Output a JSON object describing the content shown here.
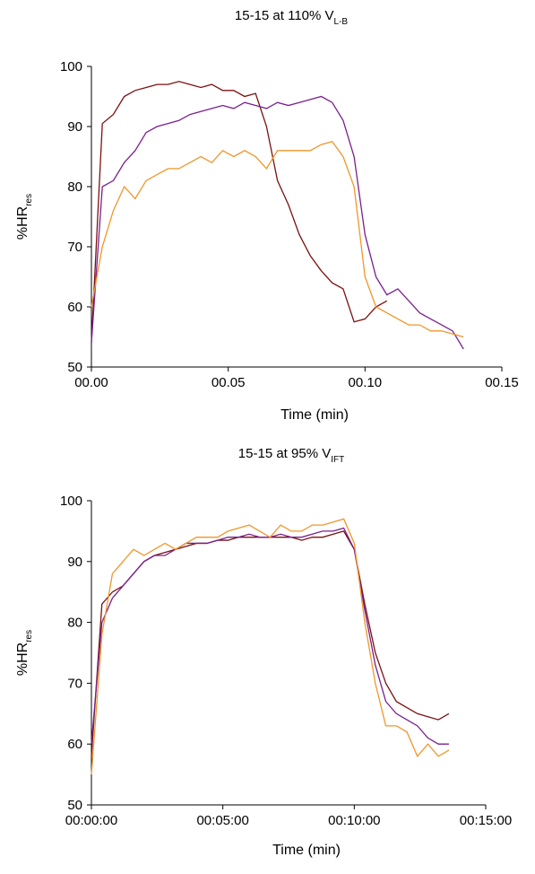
{
  "chart_data": [
    {
      "type": "line",
      "title": "15-15 at 110% V",
      "title_sub": "L-B",
      "ylabel": "%HR",
      "ylabel_sub": "res",
      "xlabel": "Time (min)",
      "x": [
        0,
        0.004,
        0.008,
        0.012,
        0.016,
        0.02,
        0.024,
        0.028,
        0.032,
        0.036,
        0.04,
        0.044,
        0.048,
        0.052,
        0.056,
        0.06,
        0.064,
        0.068,
        0.072,
        0.076,
        0.08,
        0.084,
        0.088,
        0.092,
        0.096,
        0.1,
        0.104,
        0.108,
        0.112,
        0.116,
        0.12,
        0.124,
        0.128,
        0.132,
        0.136
      ],
      "series": [
        {
          "color": "#7b1010",
          "values": [
            54,
            90.5,
            92,
            95,
            96,
            96.5,
            97,
            97,
            97.5,
            97,
            96.5,
            97,
            96,
            96,
            95,
            95.5,
            90,
            81,
            77,
            72,
            68.5,
            66,
            64,
            63,
            57.5,
            58,
            60,
            61,
            null,
            null,
            null,
            null,
            null,
            null,
            null
          ]
        },
        {
          "color": "#7a1f8f",
          "values": [
            54,
            80,
            81,
            84,
            86,
            89,
            90,
            90.5,
            91,
            92,
            92.5,
            93,
            93.5,
            93,
            94,
            93.5,
            93,
            94,
            93.5,
            94,
            94.5,
            95,
            94,
            91,
            85,
            72,
            65,
            62,
            63,
            61,
            59,
            58,
            57,
            56,
            53
          ]
        },
        {
          "color": "#f0962a",
          "values": [
            60,
            70,
            76,
            80,
            78,
            81,
            82,
            83,
            83,
            84,
            85,
            84,
            86,
            85,
            86,
            85,
            83,
            86,
            86,
            86,
            86,
            87,
            87.5,
            85,
            80,
            65,
            60,
            59,
            58,
            57,
            57,
            56,
            56,
            55.5,
            55
          ]
        }
      ],
      "xlim": [
        0,
        0.15
      ],
      "xticks": [
        {
          "value": 0,
          "label": "00.00"
        },
        {
          "value": 0.05,
          "label": "00.05"
        },
        {
          "value": 0.1,
          "label": "00.10"
        },
        {
          "value": 0.15,
          "label": "00.15"
        }
      ],
      "ylim": [
        50,
        100
      ],
      "yticks": [
        50,
        60,
        70,
        80,
        90,
        100
      ],
      "grid": false
    },
    {
      "type": "line",
      "title": "15-15 at 95% V",
      "title_sub": "IFT",
      "ylabel": "%HR",
      "ylabel_sub": "res",
      "xlabel": "Time (min)",
      "x": [
        0,
        0.4,
        0.8,
        1.2,
        1.6,
        2,
        2.4,
        2.8,
        3.2,
        3.6,
        4,
        4.4,
        4.8,
        5.2,
        5.6,
        6,
        6.4,
        6.8,
        7.2,
        7.6,
        8,
        8.4,
        8.8,
        9.2,
        9.6,
        10,
        10.4,
        10.8,
        11.2,
        11.6,
        12,
        12.4,
        12.8,
        13.2,
        13.6
      ],
      "series": [
        {
          "color": "#7b1010",
          "values": [
            58,
            83,
            85,
            86,
            88,
            90,
            91,
            91.5,
            92,
            92.5,
            93,
            93,
            93.5,
            93.5,
            94,
            94,
            94,
            94,
            94,
            94,
            93.5,
            94,
            94,
            94.5,
            95,
            92,
            83,
            75,
            70,
            67,
            66,
            65,
            64.5,
            64,
            65
          ]
        },
        {
          "color": "#7a1f8f",
          "values": [
            60,
            80,
            84,
            86,
            88,
            90,
            91,
            91,
            92,
            93,
            93,
            93,
            93.5,
            94,
            94,
            94.5,
            94,
            94,
            94.5,
            94,
            94,
            94.5,
            95,
            95,
            95.5,
            92,
            82,
            73,
            67,
            65,
            64,
            63,
            61,
            60,
            60
          ]
        },
        {
          "color": "#f0962a",
          "values": [
            55,
            78,
            88,
            90,
            92,
            91,
            92,
            93,
            92,
            93,
            94,
            94,
            94,
            95,
            95.5,
            96,
            95,
            94,
            96,
            95,
            95,
            96,
            96,
            96.5,
            97,
            93,
            80,
            70,
            63,
            63,
            62,
            58,
            60,
            58,
            59
          ]
        }
      ],
      "xlim": [
        0,
        15
      ],
      "xticks": [
        {
          "value": 0,
          "label": "00:00:00"
        },
        {
          "value": 5,
          "label": "00:05:00"
        },
        {
          "value": 10,
          "label": "00:10:00"
        },
        {
          "value": 15,
          "label": "00:15:00"
        }
      ],
      "ylim": [
        50,
        100
      ],
      "yticks": [
        50,
        60,
        70,
        80,
        90,
        100
      ],
      "grid": false
    }
  ]
}
